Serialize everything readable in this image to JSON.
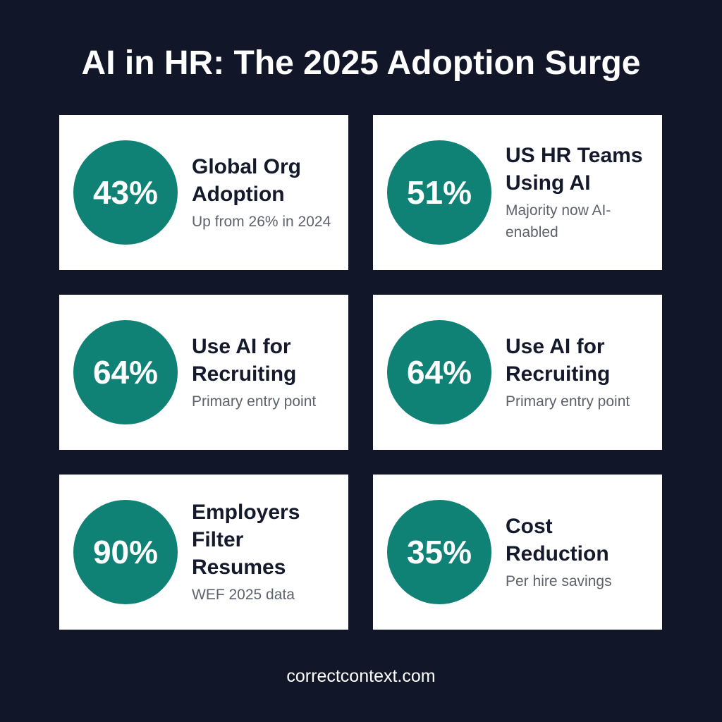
{
  "title": "AI in HR: The 2025 Adoption Surge",
  "cards": [
    {
      "stat": "43%",
      "heading": "Global Org Adoption",
      "subtext": "Up from 26% in 2024"
    },
    {
      "stat": "51%",
      "heading": "US HR Teams Using AI",
      "subtext": "Majority now AI-enabled"
    },
    {
      "stat": "64%",
      "heading": "Use AI for Recruiting",
      "subtext": "Primary entry point"
    },
    {
      "stat": "64%",
      "heading": "Use AI for Recruiting",
      "subtext": "Primary entry point"
    },
    {
      "stat": "90%",
      "heading": "Employers Filter Resumes",
      "subtext": "WEF 2025 data"
    },
    {
      "stat": "35%",
      "heading": "Cost Reduction",
      "subtext": "Per hire savings"
    }
  ],
  "footer": "correctcontext.com",
  "colors": {
    "background": "#111729",
    "card": "#ffffff",
    "accent": "#0f8275",
    "heading": "#141a2b",
    "subtext": "#5d626c"
  }
}
